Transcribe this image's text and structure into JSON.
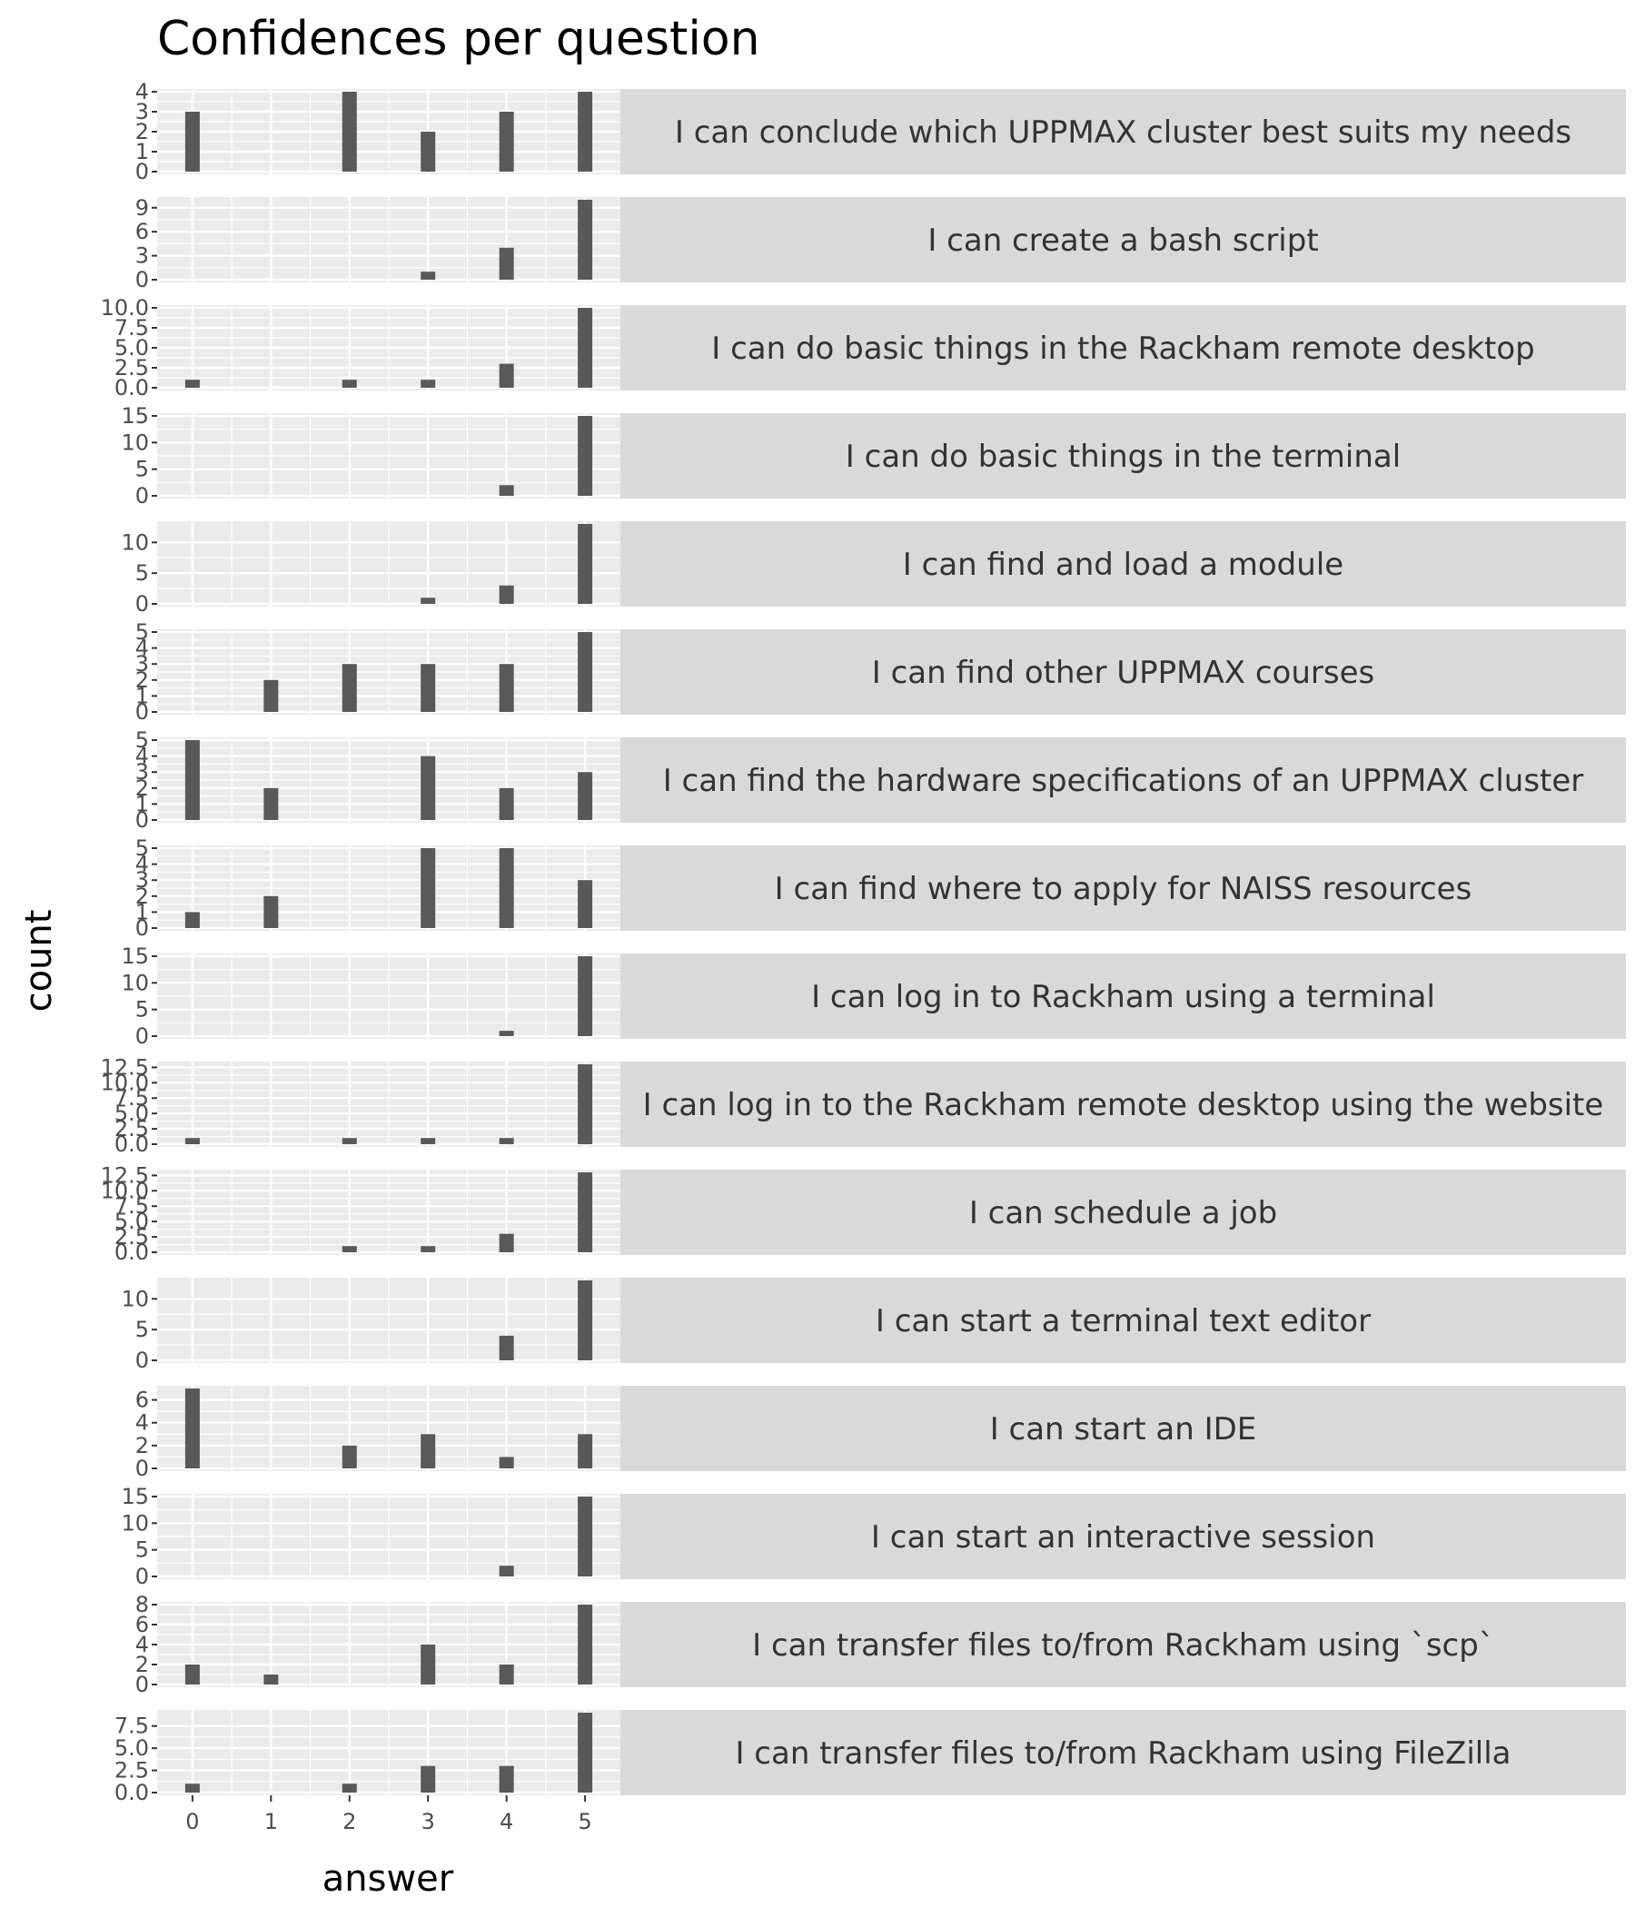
{
  "chart_data": {
    "type": "bar",
    "title": "Confidences per question",
    "xlabel": "answer",
    "ylabel": "count",
    "x_ticks": [
      "0",
      "1",
      "2",
      "3",
      "4",
      "5"
    ],
    "colors": {
      "bar": "#595959",
      "panel": "#ebebeb",
      "strip": "#d9d9d9"
    },
    "panels": [
      {
        "label": "I can conclude which UPPMAX cluster best suits my needs",
        "values": [
          3,
          0,
          4,
          2,
          3,
          4
        ],
        "ylim": [
          0,
          4
        ],
        "y_ticks": [
          "0",
          "1",
          "2",
          "3",
          "4"
        ]
      },
      {
        "label": "I can create a bash script",
        "values": [
          0,
          0,
          0,
          1,
          4,
          10
        ],
        "ylim": [
          0,
          10
        ],
        "y_ticks": [
          "0",
          "3",
          "6",
          "9"
        ]
      },
      {
        "label": "I can do basic things in the Rackham remote desktop",
        "values": [
          1,
          0,
          1,
          1,
          3,
          10
        ],
        "ylim": [
          0,
          10
        ],
        "y_ticks": [
          "0.0",
          "2.5",
          "5.0",
          "7.5",
          "10.0"
        ]
      },
      {
        "label": "I can do basic things in the terminal",
        "values": [
          0,
          0,
          0,
          0,
          2,
          15
        ],
        "ylim": [
          0,
          15
        ],
        "y_ticks": [
          "0",
          "5",
          "10",
          "15"
        ]
      },
      {
        "label": "I can find and load a module",
        "values": [
          0,
          0,
          0,
          1,
          3,
          13
        ],
        "ylim": [
          0,
          13
        ],
        "y_ticks": [
          "0",
          "5",
          "10"
        ]
      },
      {
        "label": "I can find other UPPMAX courses",
        "values": [
          0,
          2,
          3,
          3,
          3,
          5
        ],
        "ylim": [
          0,
          5
        ],
        "y_ticks": [
          "0",
          "1",
          "2",
          "3",
          "4",
          "5"
        ]
      },
      {
        "label": "I can find the hardware specifications of an UPPMAX cluster",
        "values": [
          5,
          2,
          0,
          4,
          2,
          3
        ],
        "ylim": [
          0,
          5
        ],
        "y_ticks": [
          "0",
          "1",
          "2",
          "3",
          "4",
          "5"
        ]
      },
      {
        "label": "I can find where to apply for NAISS resources",
        "values": [
          1,
          2,
          0,
          5,
          5,
          3
        ],
        "ylim": [
          0,
          5
        ],
        "y_ticks": [
          "0",
          "1",
          "2",
          "3",
          "4",
          "5"
        ]
      },
      {
        "label": "I can log in to Rackham using a terminal",
        "values": [
          0,
          0,
          0,
          0,
          1,
          15
        ],
        "ylim": [
          0,
          15
        ],
        "y_ticks": [
          "0",
          "5",
          "10",
          "15"
        ]
      },
      {
        "label": "I can log in to the Rackham remote desktop using the website",
        "values": [
          1,
          0,
          1,
          1,
          1,
          13
        ],
        "ylim": [
          0,
          13
        ],
        "y_ticks": [
          "0.0",
          "2.5",
          "5.0",
          "7.5",
          "10.0",
          "12.5"
        ]
      },
      {
        "label": "I can schedule a job",
        "values": [
          0,
          0,
          1,
          1,
          3,
          13
        ],
        "ylim": [
          0,
          13
        ],
        "y_ticks": [
          "0.0",
          "2.5",
          "5.0",
          "7.5",
          "10.0",
          "12.5"
        ]
      },
      {
        "label": "I can start a terminal text editor",
        "values": [
          0,
          0,
          0,
          0,
          4,
          13
        ],
        "ylim": [
          0,
          13
        ],
        "y_ticks": [
          "0",
          "5",
          "10"
        ]
      },
      {
        "label": "I can start an IDE",
        "values": [
          7,
          0,
          2,
          3,
          1,
          3
        ],
        "ylim": [
          0,
          7
        ],
        "y_ticks": [
          "0",
          "2",
          "4",
          "6"
        ]
      },
      {
        "label": "I can start an interactive session",
        "values": [
          0,
          0,
          0,
          0,
          2,
          15
        ],
        "ylim": [
          0,
          15
        ],
        "y_ticks": [
          "0",
          "5",
          "10",
          "15"
        ]
      },
      {
        "label": "I can transfer files to/from Rackham using `scp`",
        "values": [
          2,
          1,
          0,
          4,
          2,
          8
        ],
        "ylim": [
          0,
          8
        ],
        "y_ticks": [
          "0",
          "2",
          "4",
          "6",
          "8"
        ]
      },
      {
        "label": "I can transfer files to/from Rackham using FileZilla",
        "values": [
          1,
          0,
          1,
          3,
          3,
          9
        ],
        "ylim": [
          0,
          9
        ],
        "y_ticks": [
          "0.0",
          "2.5",
          "5.0",
          "7.5"
        ]
      }
    ]
  }
}
